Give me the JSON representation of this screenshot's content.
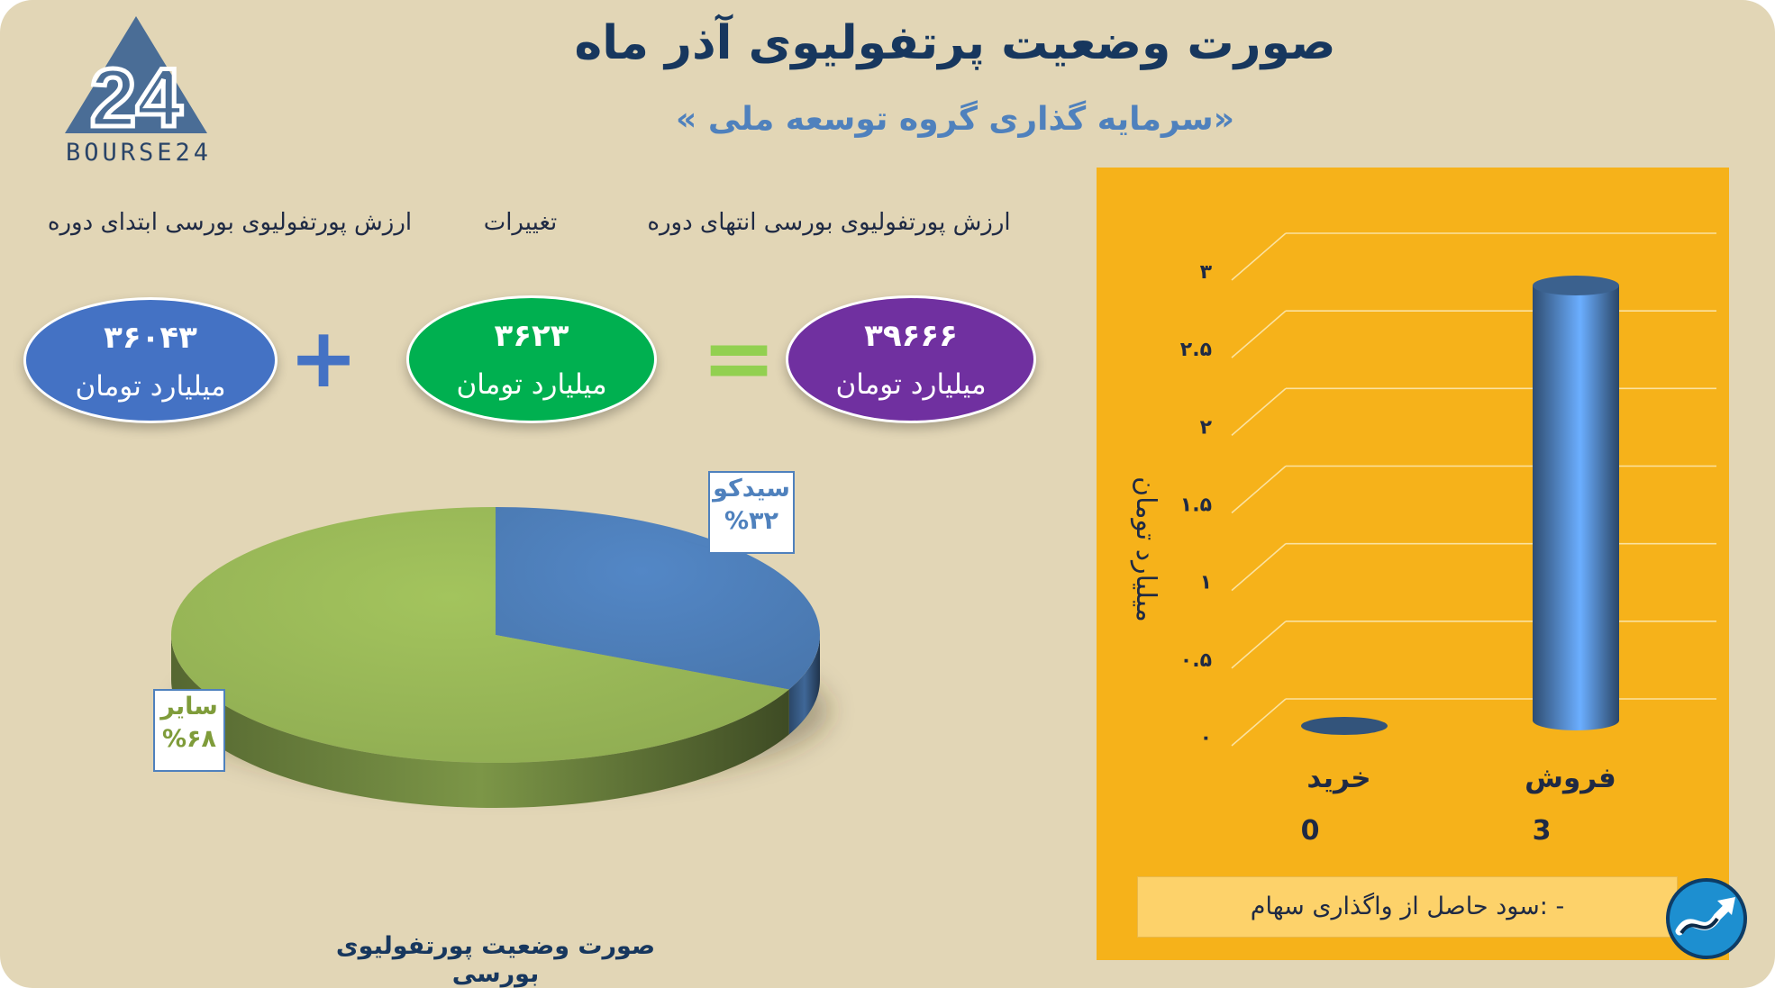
{
  "header": {
    "title": "صورت وضعیت پرتفولیوی آذر ماه",
    "subtitle": "«سرمایه گذاری گروه توسعه ملی »",
    "logo_text": "BOURSE24",
    "logo_digits": "24"
  },
  "summary": {
    "start": {
      "label": "ارزش پورتفولیوی بورسی ابتدای دوره",
      "value": "۳۶۰۴۳",
      "unit": "میلیارد تومان",
      "color": "#4472c4"
    },
    "change": {
      "label": "تغییرات",
      "value": "۳۶۲۳",
      "unit": "میلیارد تومان",
      "color": "#00b050"
    },
    "end": {
      "label": "ارزش پورتفولیوی بورسی انتهای دوره",
      "value": "۳۹۶۶۶",
      "unit": "میلیارد تومان",
      "color": "#7030a0"
    },
    "plus_symbol": "+",
    "equals_symbol": "=",
    "operator_plus_color": "#4472c4",
    "operator_equals_color": "#92d050"
  },
  "pie_caption": "صورت وضعیت پورتفولیوی بورسی",
  "footnote": "- :سود حاصل از واگذاری سهام",
  "colors": {
    "background": "#e2d6b6",
    "panel": "#f6b21a",
    "title": "#17375e",
    "subtitle": "#4f81bd"
  },
  "chart_data": [
    {
      "type": "pie",
      "title": "",
      "slices": [
        {
          "label": "سیدکو",
          "value": 32,
          "value_label": "%۳۲",
          "color": "#4f81bd"
        },
        {
          "label": "سایر",
          "value": 68,
          "value_label": "%۶۸",
          "color": "#9bbb59"
        }
      ]
    },
    {
      "type": "bar",
      "title": "",
      "ylabel": "میلیارد تومان",
      "categories": [
        "خرید",
        "فروش"
      ],
      "values": [
        0,
        3
      ],
      "value_labels": [
        "0",
        "3"
      ],
      "ylim": [
        0,
        3
      ],
      "yticks": [
        {
          "value": 0,
          "label": "۰"
        },
        {
          "value": 0.5,
          "label": "۰.۵"
        },
        {
          "value": 1,
          "label": "۱"
        },
        {
          "value": 1.5,
          "label": "۱.۵"
        },
        {
          "value": 2,
          "label": "۲"
        },
        {
          "value": 2.5,
          "label": "۲.۵"
        },
        {
          "value": 3,
          "label": "۳"
        }
      ],
      "grid": true,
      "bar_color": "#4f81bd"
    }
  ]
}
